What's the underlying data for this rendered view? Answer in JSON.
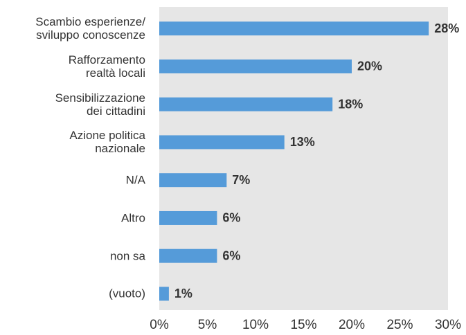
{
  "chart_data": {
    "type": "bar",
    "orientation": "horizontal",
    "categories": [
      "Scambio esperienze/\nsviluppo conoscenze",
      "Rafforzamento\nrealtà locali",
      "Sensibilizzazione\ndei cittadini",
      "Azione politica\nnazionale",
      "N/A",
      "Altro",
      "non sa",
      "(vuoto)"
    ],
    "values": [
      28,
      20,
      18,
      13,
      7,
      6,
      6,
      1
    ],
    "value_labels": [
      "28%",
      "20%",
      "18%",
      "13%",
      "7%",
      "6%",
      "6%",
      "1%"
    ],
    "color": "#559bd9",
    "background": "#e6e6e6",
    "xlim": [
      0,
      30
    ],
    "xticks": [
      {
        "value": 0,
        "label": "0%"
      },
      {
        "value": 5,
        "label": "5%"
      },
      {
        "value": 10,
        "label": "10%"
      },
      {
        "value": 15,
        "label": "15%"
      },
      {
        "value": 20,
        "label": "20%"
      },
      {
        "value": 25,
        "label": "25%"
      },
      {
        "value": 30,
        "label": "30%"
      }
    ],
    "grid": false
  }
}
